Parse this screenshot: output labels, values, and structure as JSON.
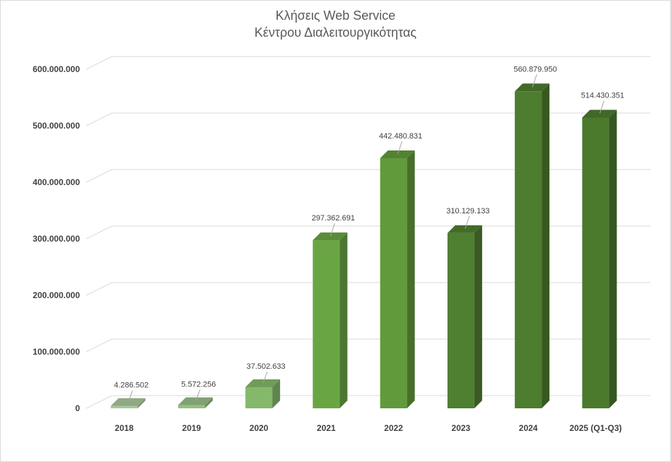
{
  "chart_data": {
    "type": "bar",
    "title": "Κλήσεις Web Service",
    "subtitle": "Κέντρου Διαλειτουργικότητας",
    "categories": [
      "2018",
      "2019",
      "2020",
      "2021",
      "2022",
      "2023",
      "2024",
      "2025 (Q1-Q3)"
    ],
    "values": [
      4286502,
      5572256,
      37502633,
      297362691,
      442480831,
      310129133,
      560879950,
      514430351
    ],
    "value_labels": [
      "4.286.502",
      "5.572.256",
      "37.502.633",
      "297.362.691",
      "442.480.831",
      "310.129.133",
      "560.879.950",
      "514.430.351"
    ],
    "yticks": [
      0,
      100000000,
      200000000,
      300000000,
      400000000,
      500000000,
      600000000
    ],
    "ytick_labels": [
      "0",
      "100.000.000",
      "200.000.000",
      "300.000.000",
      "400.000.000",
      "500.000.000",
      "600.000.000"
    ],
    "ylim": [
      0,
      600000000
    ],
    "grid": true,
    "legend": "none",
    "colors": {
      "bars": [
        "#a9c79b",
        "#97bd85",
        "#84b86a",
        "#6aa543",
        "#619a3b",
        "#4f7f30",
        "#4d7d2e",
        "#4b7a2d"
      ],
      "grid": "#d9d9d9",
      "axis_text": "#404040",
      "title_text": "#595959"
    }
  }
}
